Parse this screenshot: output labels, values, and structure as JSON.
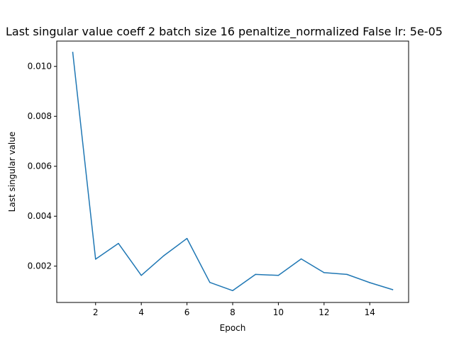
{
  "chart_data": {
    "type": "line",
    "title": "Last singular value coeff 2 batch size 16 penaltize_normalized False lr: 5e-05",
    "xlabel": "Epoch",
    "ylabel": "Last singular value",
    "x": [
      1,
      2,
      3,
      4,
      5,
      6,
      7,
      8,
      9,
      10,
      11,
      12,
      13,
      14,
      15
    ],
    "series": [
      {
        "values": [
          0.01056,
          0.00228,
          0.00291,
          0.00163,
          0.00243,
          0.00311,
          0.00135,
          0.00102,
          0.00167,
          0.00163,
          0.00229,
          0.00174,
          0.00167,
          0.00134,
          0.00106
        ],
        "color": "#1f77b4"
      }
    ],
    "xlim": [
      0.3,
      15.7
    ],
    "ylim": [
      0.000546,
      0.011014
    ],
    "xticks": [
      2,
      4,
      6,
      8,
      10,
      12,
      14
    ],
    "yticks": [
      0.002,
      0.004,
      0.006,
      0.008,
      0.01
    ],
    "xtick_labels": [
      "2",
      "4",
      "6",
      "8",
      "10",
      "12",
      "14"
    ],
    "ytick_labels": [
      "0.002",
      "0.004",
      "0.006",
      "0.008",
      "0.010"
    ],
    "grid": false,
    "legend": "none"
  }
}
